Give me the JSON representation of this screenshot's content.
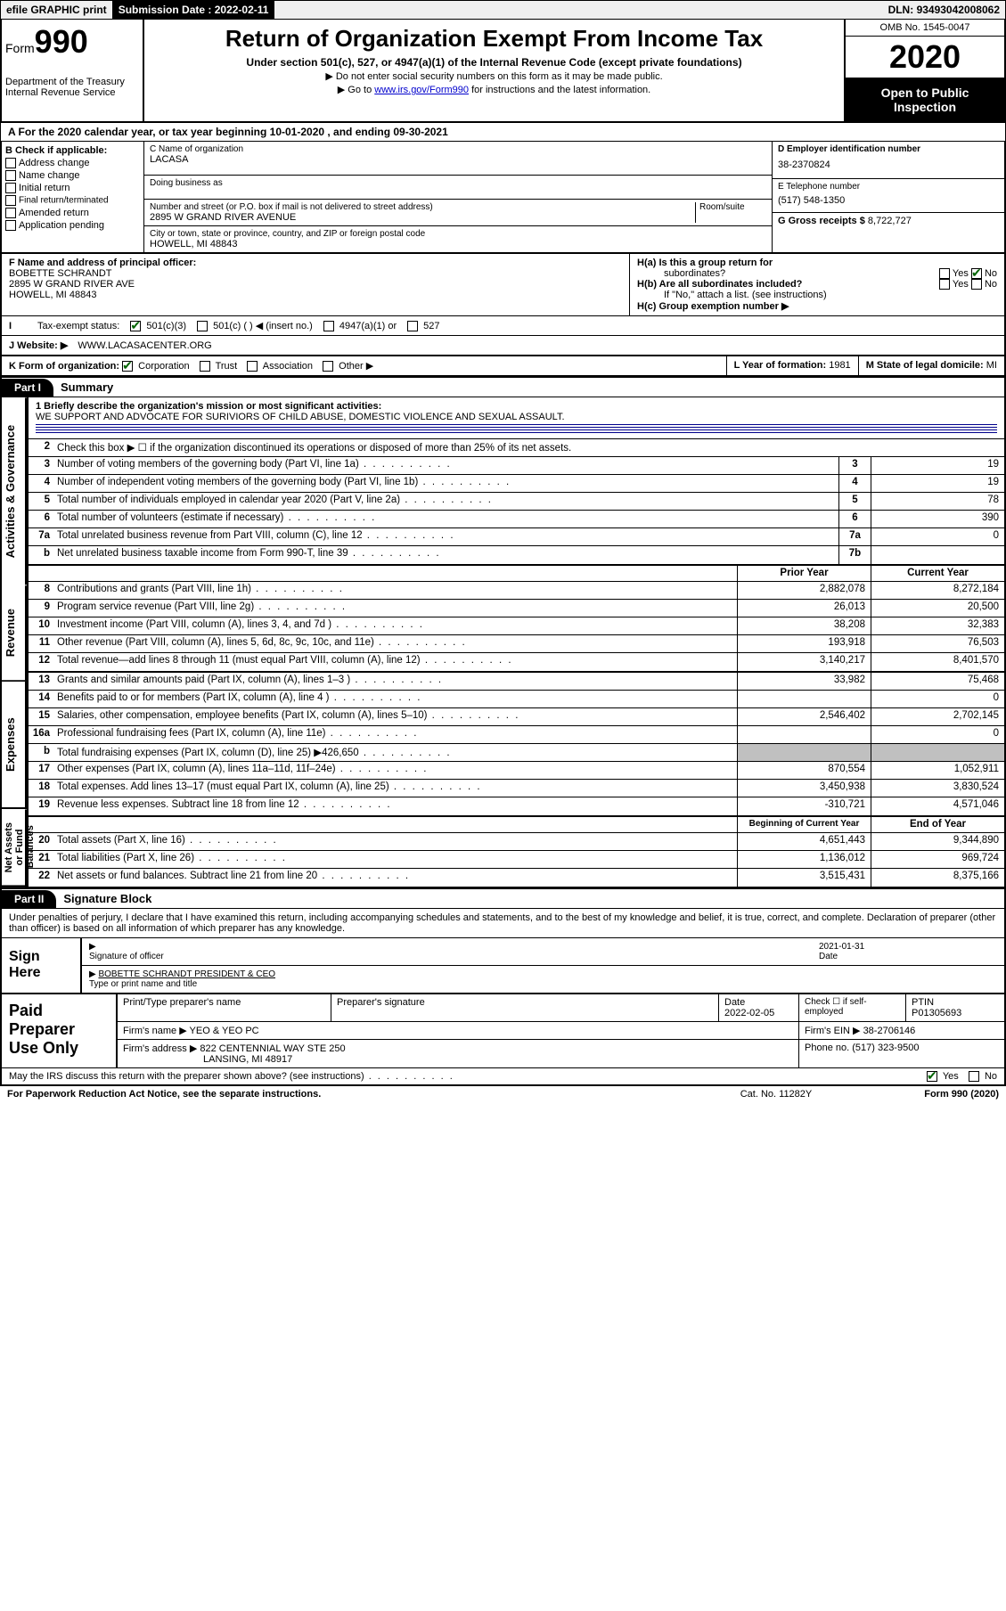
{
  "topbar": {
    "efile": "efile GRAPHIC print",
    "submit_label": "Submission Date : ",
    "submit_date": "2022-02-11",
    "dln_label": "DLN: ",
    "dln": "93493042008062"
  },
  "header": {
    "form_word": "Form",
    "form_num": "990",
    "dept1": "Department of the Treasury",
    "dept2": "Internal Revenue Service",
    "title": "Return of Organization Exempt From Income Tax",
    "subtitle": "Under section 501(c), 527, or 4947(a)(1) of the Internal Revenue Code (except private foundations)",
    "note1": "▶ Do not enter social security numbers on this form as it may be made public.",
    "note2_pre": "▶ Go to ",
    "note2_link": "www.irs.gov/Form990",
    "note2_post": " for instructions and the latest information.",
    "omb": "OMB No. 1545-0047",
    "year": "2020",
    "inspection": "Open to Public Inspection"
  },
  "lineA": "A  For the 2020 calendar year, or tax year beginning 10-01-2020    , and ending 09-30-2021",
  "colB": {
    "label": "B Check if applicable:",
    "items": [
      "Address change",
      "Name change",
      "Initial return",
      "Final return/terminated",
      "Amended return",
      "Application pending"
    ]
  },
  "colC": {
    "name_label": "C Name of organization",
    "name": "LACASA",
    "dba_label": "Doing business as",
    "addr_label": "Number and street (or P.O. box if mail is not delivered to street address)",
    "room_label": "Room/suite",
    "addr": "2895 W GRAND RIVER AVENUE",
    "city_label": "City or town, state or province, country, and ZIP or foreign postal code",
    "city": "HOWELL, MI  48843"
  },
  "colD": {
    "ein_label": "D Employer identification number",
    "ein": "38-2370824",
    "phone_label": "E Telephone number",
    "phone": "(517) 548-1350",
    "gross_label": "G Gross receipts $ ",
    "gross": "8,722,727"
  },
  "sectionF": {
    "label": "F Name and address of principal officer:",
    "name": "BOBETTE SCHRANDT",
    "addr1": "2895 W GRAND RIVER AVE",
    "addr2": "HOWELL, MI  48843",
    "ha_label": "H(a)  Is this a group return for",
    "ha_sub": "subordinates?",
    "hb_label": "H(b)  Are all subordinates included?",
    "hb_note": "If \"No,\" attach a list. (see instructions)",
    "hc_label": "H(c)  Group exemption number ▶",
    "yes": "Yes",
    "no": "No"
  },
  "taxRow": {
    "label": "Tax-exempt status:",
    "opt1": "501(c)(3)",
    "opt2": "501(c) (   ) ◀ (insert no.)",
    "opt3": "4947(a)(1) or",
    "opt4": "527"
  },
  "website": {
    "label": "J    Website: ▶",
    "value": "WWW.LACASACENTER.ORG"
  },
  "kRow": {
    "k_label": "K Form of organization:",
    "corp": "Corporation",
    "trust": "Trust",
    "assoc": "Association",
    "other": "Other ▶",
    "l_label": "L Year of formation: ",
    "l_val": "1981",
    "m_label": "M State of legal domicile: ",
    "m_val": "MI"
  },
  "part1": {
    "header": "Part I",
    "title": "Summary",
    "side_gov": "Activities & Governance",
    "side_rev": "Revenue",
    "side_exp": "Expenses",
    "side_net": "Net Assets or Fund Balances",
    "l1_label": "1  Briefly describe the organization's mission or most significant activities:",
    "l1_text": "WE SUPPORT AND ADVOCATE FOR SURIVIORS OF CHILD ABUSE, DOMESTIC VIOLENCE AND SEXUAL ASSAULT.",
    "l2": "Check this box ▶ ☐  if the organization discontinued its operations or disposed of more than 25% of its net assets.",
    "rows_gov": [
      {
        "n": "3",
        "d": "Number of voting members of the governing body (Part VI, line 1a)",
        "b": "3",
        "v": "19"
      },
      {
        "n": "4",
        "d": "Number of independent voting members of the governing body (Part VI, line 1b)",
        "b": "4",
        "v": "19"
      },
      {
        "n": "5",
        "d": "Total number of individuals employed in calendar year 2020 (Part V, line 2a)",
        "b": "5",
        "v": "78"
      },
      {
        "n": "6",
        "d": "Total number of volunteers (estimate if necessary)",
        "b": "6",
        "v": "390"
      },
      {
        "n": "7a",
        "d": "Total unrelated business revenue from Part VIII, column (C), line 12",
        "b": "7a",
        "v": "0"
      },
      {
        "n": "b",
        "d": "Net unrelated business taxable income from Form 990-T, line 39",
        "b": "7b",
        "v": ""
      }
    ],
    "col_prior": "Prior Year",
    "col_current": "Current Year",
    "rows_rev": [
      {
        "n": "8",
        "d": "Contributions and grants (Part VIII, line 1h)",
        "p": "2,882,078",
        "c": "8,272,184"
      },
      {
        "n": "9",
        "d": "Program service revenue (Part VIII, line 2g)",
        "p": "26,013",
        "c": "20,500"
      },
      {
        "n": "10",
        "d": "Investment income (Part VIII, column (A), lines 3, 4, and 7d )",
        "p": "38,208",
        "c": "32,383"
      },
      {
        "n": "11",
        "d": "Other revenue (Part VIII, column (A), lines 5, 6d, 8c, 9c, 10c, and 11e)",
        "p": "193,918",
        "c": "76,503"
      },
      {
        "n": "12",
        "d": "Total revenue—add lines 8 through 11 (must equal Part VIII, column (A), line 12)",
        "p": "3,140,217",
        "c": "8,401,570"
      }
    ],
    "rows_exp": [
      {
        "n": "13",
        "d": "Grants and similar amounts paid (Part IX, column (A), lines 1–3 )",
        "p": "33,982",
        "c": "75,468"
      },
      {
        "n": "14",
        "d": "Benefits paid to or for members (Part IX, column (A), line 4 )",
        "p": "",
        "c": "0"
      },
      {
        "n": "15",
        "d": "Salaries, other compensation, employee benefits (Part IX, column (A), lines 5–10)",
        "p": "2,546,402",
        "c": "2,702,145"
      },
      {
        "n": "16a",
        "d": "Professional fundraising fees (Part IX, column (A), line 11e)",
        "p": "",
        "c": "0"
      },
      {
        "n": "b",
        "d": "Total fundraising expenses (Part IX, column (D), line 25) ▶426,650",
        "p": "shaded",
        "c": "shaded"
      },
      {
        "n": "17",
        "d": "Other expenses (Part IX, column (A), lines 11a–11d, 11f–24e)",
        "p": "870,554",
        "c": "1,052,911"
      },
      {
        "n": "18",
        "d": "Total expenses. Add lines 13–17 (must equal Part IX, column (A), line 25)",
        "p": "3,450,938",
        "c": "3,830,524"
      },
      {
        "n": "19",
        "d": "Revenue less expenses. Subtract line 18 from line 12",
        "p": "-310,721",
        "c": "4,571,046"
      }
    ],
    "col_begin": "Beginning of Current Year",
    "col_end": "End of Year",
    "rows_net": [
      {
        "n": "20",
        "d": "Total assets (Part X, line 16)",
        "p": "4,651,443",
        "c": "9,344,890"
      },
      {
        "n": "21",
        "d": "Total liabilities (Part X, line 26)",
        "p": "1,136,012",
        "c": "969,724"
      },
      {
        "n": "22",
        "d": "Net assets or fund balances. Subtract line 21 from line 20",
        "p": "3,515,431",
        "c": "8,375,166"
      }
    ]
  },
  "part2": {
    "header": "Part II",
    "title": "Signature Block",
    "penalty": "Under penalties of perjury, I declare that I have examined this return, including accompanying schedules and statements, and to the best of my knowledge and belief, it is true, correct, and complete. Declaration of preparer (other than officer) is based on all information of which preparer has any knowledge.",
    "sign_here": "Sign Here",
    "sig_officer": "Signature of officer",
    "sig_date_label": "Date",
    "sig_date": "2021-01-31",
    "sig_name": "BOBETTE SCHRANDT PRESIDENT & CEO",
    "sig_type": "Type or print name and title",
    "paid": "Paid Preparer Use Only",
    "prep_name_label": "Print/Type preparer's name",
    "prep_sig_label": "Preparer's signature",
    "prep_date_label": "Date",
    "prep_date": "2022-02-05",
    "prep_check": "Check ☐ if self-employed",
    "ptin_label": "PTIN",
    "ptin": "P01305693",
    "firm_name_label": "Firm's name    ▶ ",
    "firm_name": "YEO & YEO PC",
    "firm_ein_label": "Firm's EIN ▶ ",
    "firm_ein": "38-2706146",
    "firm_addr_label": "Firm's address ▶ ",
    "firm_addr1": "822 CENTENNIAL WAY STE 250",
    "firm_addr2": "LANSING, MI  48917",
    "firm_phone_label": "Phone no. ",
    "firm_phone": "(517) 323-9500",
    "discuss": "May the IRS discuss this return with the preparer shown above? (see instructions)",
    "paperwork": "For Paperwork Reduction Act Notice, see the separate instructions.",
    "cat": "Cat. No. 11282Y",
    "form_footer": "Form 990 (2020)"
  }
}
